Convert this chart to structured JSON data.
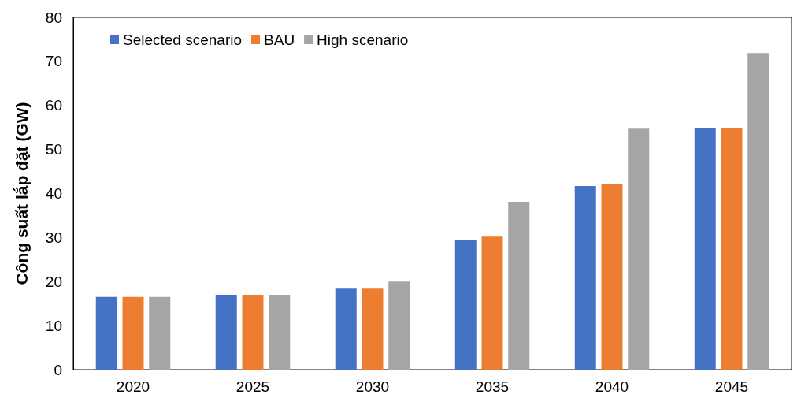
{
  "chart_data": {
    "type": "bar",
    "ylabel": "Công suất lắp đặt (GW)",
    "categories": [
      "2020",
      "2025",
      "2030",
      "2035",
      "2040",
      "2045"
    ],
    "series": [
      {
        "name": "Selected scenario",
        "color": "#4472c4",
        "values": [
          16.5,
          17.0,
          18.4,
          29.5,
          41.7,
          54.9
        ]
      },
      {
        "name": "BAU",
        "color": "#ed7d31",
        "values": [
          16.5,
          17.0,
          18.4,
          30.2,
          42.2,
          54.9
        ]
      },
      {
        "name": "High scenario",
        "color": "#a5a5a5",
        "values": [
          16.5,
          17.0,
          20.0,
          38.1,
          54.7,
          71.9
        ]
      }
    ],
    "ylim": [
      0,
      80
    ],
    "yticks": [
      0,
      10,
      20,
      30,
      40,
      50,
      60,
      70,
      80
    ],
    "grid": false,
    "legend": "top left"
  }
}
